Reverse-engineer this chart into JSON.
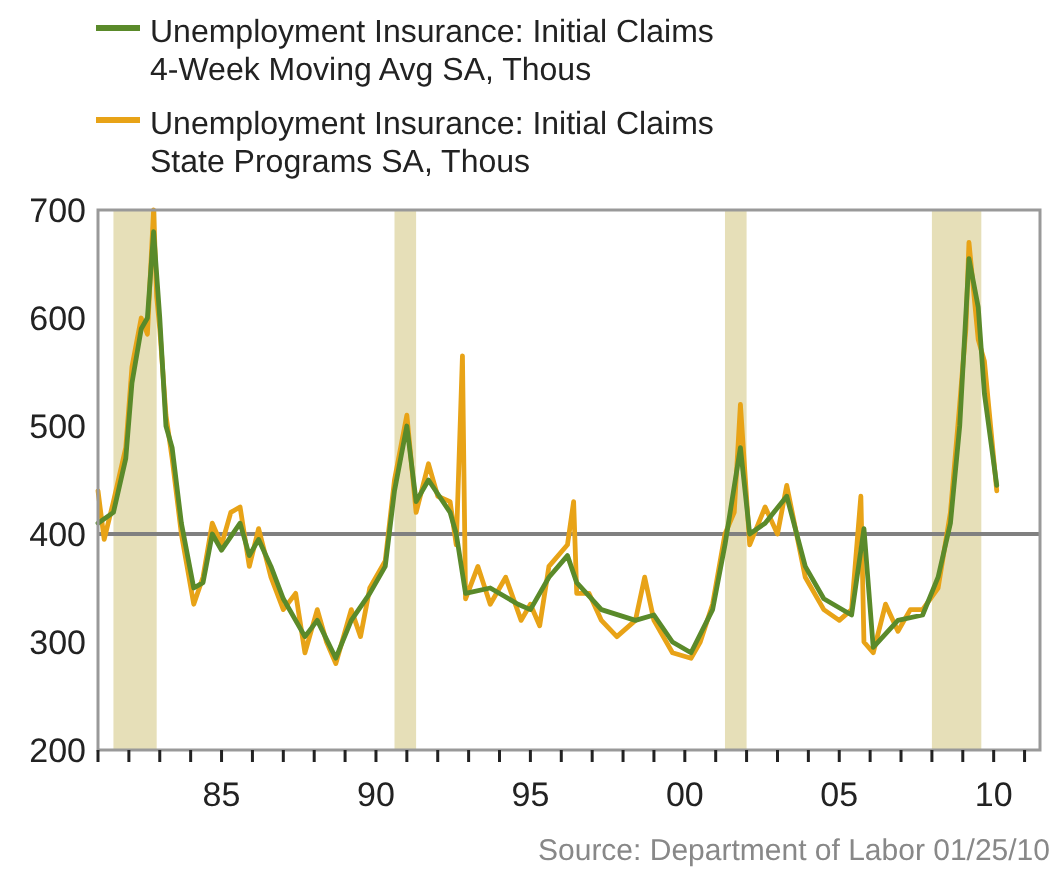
{
  "chart_data": {
    "type": "line",
    "annotations": [
      "Source: Department of Labor  01/25/10"
    ],
    "xlim": [
      1981,
      2011.5
    ],
    "ylim": [
      200,
      700
    ],
    "xticks": [
      {
        "value": 1981,
        "label": null
      },
      {
        "value": 1982,
        "label": null
      },
      {
        "value": 1983,
        "label": null
      },
      {
        "value": 1984,
        "label": null
      },
      {
        "value": 1985,
        "label": "85"
      },
      {
        "value": 1986,
        "label": null
      },
      {
        "value": 1987,
        "label": null
      },
      {
        "value": 1988,
        "label": null
      },
      {
        "value": 1989,
        "label": null
      },
      {
        "value": 1990,
        "label": "90"
      },
      {
        "value": 1991,
        "label": null
      },
      {
        "value": 1992,
        "label": null
      },
      {
        "value": 1993,
        "label": null
      },
      {
        "value": 1994,
        "label": null
      },
      {
        "value": 1995,
        "label": "95"
      },
      {
        "value": 1996,
        "label": null
      },
      {
        "value": 1997,
        "label": null
      },
      {
        "value": 1998,
        "label": null
      },
      {
        "value": 1999,
        "label": null
      },
      {
        "value": 2000,
        "label": "00"
      },
      {
        "value": 2001,
        "label": null
      },
      {
        "value": 2002,
        "label": null
      },
      {
        "value": 2003,
        "label": null
      },
      {
        "value": 2004,
        "label": null
      },
      {
        "value": 2005,
        "label": "05"
      },
      {
        "value": 2006,
        "label": null
      },
      {
        "value": 2007,
        "label": null
      },
      {
        "value": 2008,
        "label": null
      },
      {
        "value": 2009,
        "label": null
      },
      {
        "value": 2010,
        "label": "10"
      },
      {
        "value": 2011,
        "label": null
      }
    ],
    "yticks": [
      200,
      300,
      400,
      500,
      600,
      700
    ],
    "grid": false,
    "legend": "top left",
    "ref_lines": [
      {
        "axis": "y",
        "value": 400,
        "color": "#808080"
      }
    ],
    "bands": [
      {
        "axis": "x",
        "from": 1981.5,
        "to": 1982.9,
        "color": "#e6dfb8"
      },
      {
        "axis": "x",
        "from": 1990.6,
        "to": 1991.3,
        "color": "#e6dfb8"
      },
      {
        "axis": "x",
        "from": 2001.3,
        "to": 2002.0,
        "color": "#e6dfb8"
      },
      {
        "axis": "x",
        "from": 2008.0,
        "to": 2009.6,
        "color": "#e6dfb8"
      }
    ],
    "series": [
      {
        "name": "Unemployment Insurance: Initial Claims State Programs  SA, Thous",
        "color": "#e8a317",
        "x": [
          1981.0,
          1981.2,
          1981.5,
          1981.9,
          1982.1,
          1982.4,
          1982.6,
          1982.8,
          1982.9,
          1983.0,
          1983.2,
          1983.4,
          1983.7,
          1984.1,
          1984.4,
          1984.7,
          1985.0,
          1985.3,
          1985.6,
          1985.9,
          1986.2,
          1986.6,
          1987.0,
          1987.4,
          1987.7,
          1988.1,
          1988.4,
          1988.7,
          1989.2,
          1989.5,
          1989.8,
          1990.3,
          1990.6,
          1991.0,
          1991.3,
          1991.7,
          1992.0,
          1992.4,
          1992.6,
          1992.8,
          1992.9,
          1993.3,
          1993.7,
          1994.2,
          1994.7,
          1995.0,
          1995.3,
          1995.6,
          1996.2,
          1996.4,
          1996.5,
          1996.9,
          1997.3,
          1997.8,
          1998.4,
          1998.7,
          1999.0,
          1999.6,
          2000.2,
          2000.5,
          2000.9,
          2001.3,
          2001.6,
          2001.8,
          2002.1,
          2002.6,
          2003.0,
          2003.3,
          2003.9,
          2004.5,
          2005.0,
          2005.4,
          2005.7,
          2005.8,
          2006.1,
          2006.5,
          2006.9,
          2007.3,
          2007.7,
          2008.2,
          2008.6,
          2008.9,
          2009.1,
          2009.2,
          2009.5,
          2009.7,
          2010.1
        ],
        "values": [
          440,
          395,
          430,
          480,
          555,
          600,
          585,
          700,
          620,
          590,
          510,
          470,
          400,
          335,
          360,
          410,
          390,
          420,
          425,
          370,
          405,
          360,
          330,
          345,
          290,
          330,
          300,
          280,
          330,
          305,
          350,
          375,
          450,
          510,
          420,
          465,
          435,
          430,
          390,
          565,
          340,
          370,
          335,
          360,
          320,
          335,
          315,
          370,
          390,
          430,
          345,
          345,
          320,
          305,
          320,
          360,
          320,
          290,
          285,
          300,
          335,
          400,
          420,
          520,
          390,
          425,
          400,
          445,
          360,
          330,
          320,
          330,
          435,
          300,
          290,
          335,
          310,
          330,
          330,
          350,
          420,
          520,
          590,
          670,
          580,
          560,
          440
        ]
      },
      {
        "name": "Unemployment Insurance: Initial Claims 4-Week Moving Avg  SA, Thous",
        "color": "#5a8a2a",
        "x": [
          1981.0,
          1981.5,
          1981.9,
          1982.1,
          1982.4,
          1982.6,
          1982.8,
          1983.0,
          1983.2,
          1983.4,
          1983.7,
          1984.1,
          1984.4,
          1984.7,
          1985.0,
          1985.6,
          1985.9,
          1986.2,
          1986.6,
          1987.0,
          1987.7,
          1988.1,
          1988.7,
          1989.2,
          1989.8,
          1990.3,
          1990.6,
          1991.0,
          1991.3,
          1991.7,
          1992.4,
          1992.6,
          1992.9,
          1993.7,
          1994.6,
          1995.0,
          1995.6,
          1996.2,
          1996.5,
          1997.3,
          1998.4,
          1999.0,
          1999.6,
          2000.2,
          2000.9,
          2001.3,
          2001.8,
          2002.1,
          2002.6,
          2003.3,
          2003.9,
          2004.5,
          2005.4,
          2005.8,
          2006.1,
          2006.9,
          2007.7,
          2008.2,
          2008.6,
          2008.9,
          2009.2,
          2009.5,
          2009.7,
          2010.1
        ],
        "values": [
          410,
          420,
          470,
          540,
          590,
          600,
          680,
          600,
          500,
          480,
          410,
          350,
          355,
          400,
          385,
          410,
          380,
          395,
          370,
          340,
          305,
          320,
          285,
          320,
          345,
          370,
          440,
          500,
          430,
          450,
          420,
          400,
          345,
          350,
          335,
          330,
          360,
          380,
          355,
          330,
          320,
          325,
          300,
          290,
          330,
          390,
          480,
          400,
          410,
          435,
          370,
          340,
          325,
          405,
          295,
          320,
          325,
          360,
          410,
          500,
          655,
          610,
          530,
          445
        ]
      }
    ]
  }
}
